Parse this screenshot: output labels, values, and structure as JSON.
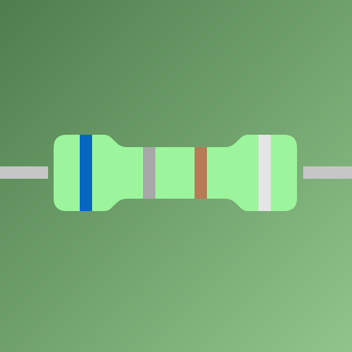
{
  "component": {
    "type": "resistor",
    "lead_color": "#c6c6c6",
    "body_color": "#9cf59c",
    "bands": [
      {
        "position": "first",
        "color_name": "blue",
        "color": "#0667c3"
      },
      {
        "position": "second",
        "color_name": "grey",
        "color": "#a8a8a8"
      },
      {
        "position": "multiplier",
        "color_name": "brown",
        "color": "#b77b55"
      },
      {
        "position": "tolerance",
        "color_name": "white",
        "color": "#e5e5e5"
      }
    ]
  },
  "background": {
    "color_start": "#4e7e4d",
    "color_end": "#91c48c"
  }
}
